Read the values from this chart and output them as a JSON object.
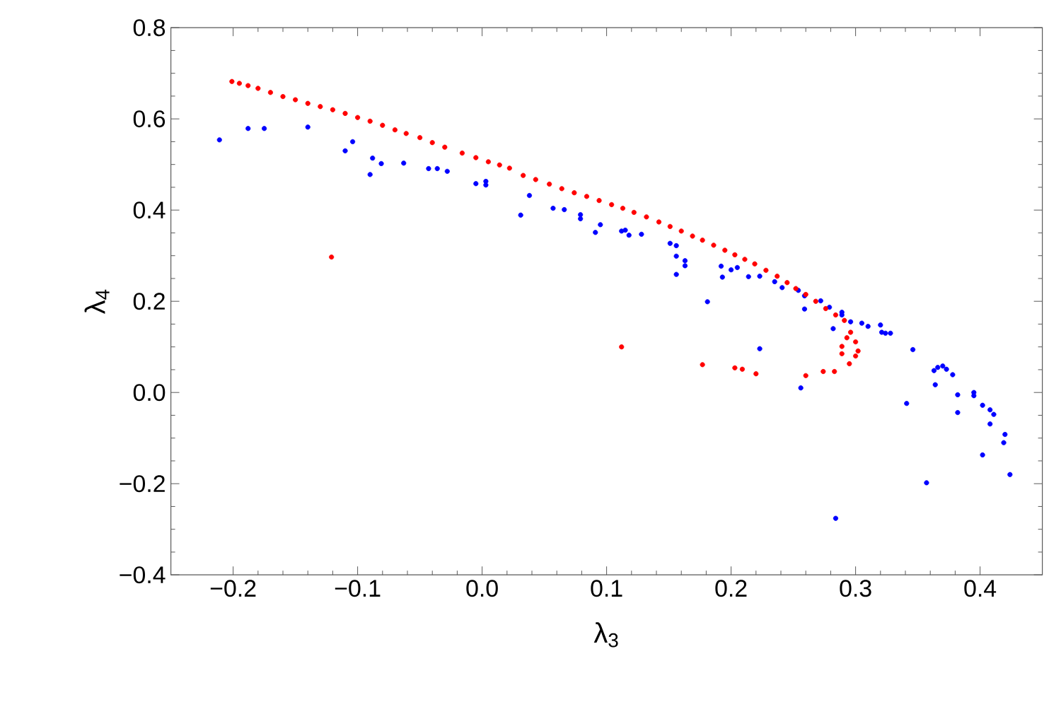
{
  "chart_data": {
    "type": "scatter",
    "xlabel": "λ$_{3}$",
    "ylabel": "λ$_{4}$",
    "marker": "circle",
    "grid": false,
    "xlim": [
      -0.25,
      0.45
    ],
    "ylim": [
      -0.4,
      0.8
    ],
    "xticks": [
      {
        "value": -0.2,
        "label": "−0.2"
      },
      {
        "value": -0.1,
        "label": "−0.1"
      },
      {
        "value": 0,
        "label": "0.0"
      },
      {
        "value": 0.1,
        "label": "0.1"
      },
      {
        "value": 0.2,
        "label": "0.2"
      },
      {
        "value": 0.3,
        "label": "0.3"
      },
      {
        "value": 0.4,
        "label": "0.4"
      }
    ],
    "yticks": [
      {
        "value": -0.4,
        "label": "−0.4"
      },
      {
        "value": -0.2,
        "label": "−0.2"
      },
      {
        "value": 0,
        "label": "0.0"
      },
      {
        "value": 0.2,
        "label": "0.2"
      },
      {
        "value": 0.4,
        "label": "0.4"
      },
      {
        "value": 0.6,
        "label": "0.6"
      },
      {
        "value": 0.8,
        "label": "0.8"
      }
    ],
    "series": [
      {
        "color": "#0000ff",
        "x": [
          -0.211,
          -0.188,
          -0.175,
          -0.14,
          -0.11,
          -0.104,
          -0.09,
          -0.088,
          -0.081,
          -0.063,
          -0.043,
          -0.036,
          -0.028,
          -0.005,
          0.003,
          0.003,
          0.031,
          0.038,
          0.057,
          0.066,
          0.079,
          0.079,
          0.091,
          0.095,
          0.112,
          0.115,
          0.118,
          0.128,
          0.151,
          0.156,
          0.156,
          0.156,
          0.163,
          0.163,
          0.181,
          0.192,
          0.193,
          0.2,
          0.205,
          0.214,
          0.223,
          0.235,
          0.241,
          0.254,
          0.259,
          0.259,
          0.272,
          0.279,
          0.289,
          0.289,
          0.282,
          0.296,
          0.305,
          0.31,
          0.32,
          0.321,
          0.324,
          0.328,
          0.223,
          0.256,
          0.284,
          0.346,
          0.341,
          0.357,
          0.363,
          0.366,
          0.37,
          0.373,
          0.378,
          0.364,
          0.382,
          0.382,
          0.395,
          0.395,
          0.402,
          0.408,
          0.411,
          0.408,
          0.402,
          0.42,
          0.419,
          0.424
        ],
        "values": [
          0.554,
          0.579,
          0.579,
          0.582,
          0.53,
          0.55,
          0.478,
          0.514,
          0.502,
          0.503,
          0.491,
          0.491,
          0.485,
          0.458,
          0.463,
          0.455,
          0.389,
          0.432,
          0.404,
          0.401,
          0.39,
          0.381,
          0.351,
          0.368,
          0.354,
          0.356,
          0.345,
          0.347,
          0.327,
          0.322,
          0.299,
          0.259,
          0.289,
          0.278,
          0.199,
          0.277,
          0.253,
          0.269,
          0.274,
          0.254,
          0.255,
          0.243,
          0.23,
          0.224,
          0.212,
          0.183,
          0.201,
          0.187,
          0.176,
          0.17,
          0.14,
          0.155,
          0.152,
          0.145,
          0.148,
          0.132,
          0.13,
          0.13,
          0.096,
          0.01,
          -0.276,
          0.094,
          -0.024,
          -0.198,
          0.048,
          0.055,
          0.058,
          0.051,
          0.039,
          0.017,
          -0.005,
          -0.044,
          0.0,
          -0.007,
          -0.028,
          -0.038,
          -0.048,
          -0.069,
          -0.137,
          -0.092,
          -0.11,
          -0.18
        ]
      },
      {
        "color": "#ff0000",
        "x": [
          -0.201,
          -0.195,
          -0.188,
          -0.18,
          -0.17,
          -0.16,
          -0.15,
          -0.14,
          -0.13,
          -0.12,
          -0.11,
          -0.1,
          -0.09,
          -0.08,
          -0.07,
          -0.061,
          -0.05,
          -0.04,
          -0.03,
          -0.016,
          -0.005,
          0.005,
          0.014,
          0.022,
          0.033,
          0.043,
          0.054,
          0.064,
          0.074,
          0.084,
          0.094,
          0.104,
          0.113,
          0.122,
          0.132,
          0.142,
          0.151,
          0.16,
          0.169,
          0.177,
          0.186,
          0.195,
          0.203,
          0.211,
          0.219,
          0.228,
          0.237,
          0.245,
          0.252,
          0.26,
          0.268,
          0.276,
          0.284,
          0.291,
          0.293,
          0.296,
          0.3,
          0.302,
          0.3,
          0.295,
          0.283,
          0.274,
          0.26,
          0.289,
          0.289,
          -0.121,
          0.112,
          0.177,
          0.203,
          0.209,
          0.22
        ],
        "values": [
          0.682,
          0.678,
          0.673,
          0.667,
          0.658,
          0.649,
          0.642,
          0.634,
          0.627,
          0.62,
          0.612,
          0.603,
          0.595,
          0.586,
          0.576,
          0.568,
          0.559,
          0.548,
          0.538,
          0.525,
          0.515,
          0.506,
          0.499,
          0.492,
          0.476,
          0.467,
          0.457,
          0.447,
          0.438,
          0.43,
          0.421,
          0.412,
          0.404,
          0.395,
          0.385,
          0.374,
          0.364,
          0.354,
          0.343,
          0.334,
          0.323,
          0.312,
          0.302,
          0.292,
          0.282,
          0.268,
          0.255,
          0.241,
          0.228,
          0.215,
          0.2,
          0.184,
          0.17,
          0.158,
          0.12,
          0.132,
          0.111,
          0.091,
          0.08,
          0.063,
          0.046,
          0.046,
          0.037,
          0.101,
          0.085,
          0.297,
          0.1,
          0.061,
          0.054,
          0.051,
          0.041
        ]
      }
    ]
  }
}
